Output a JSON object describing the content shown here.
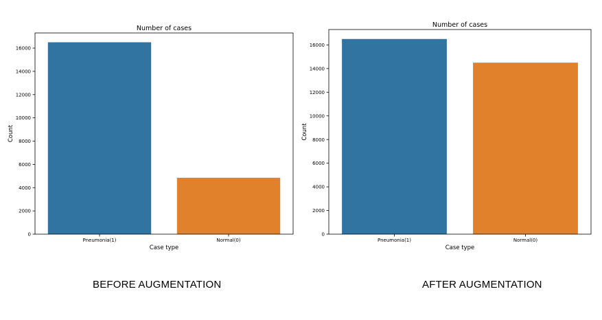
{
  "chart_data": [
    {
      "type": "bar",
      "title": "Number of cases",
      "xlabel": "Case type",
      "ylabel": "Count",
      "categories": [
        "Pneumonia(1)",
        "Normal(0)"
      ],
      "values": [
        16500,
        4850
      ],
      "colors": [
        "#3274a1",
        "#e1812c"
      ],
      "ylim": [
        0,
        17300
      ],
      "yticks": [
        0,
        2000,
        4000,
        6000,
        8000,
        10000,
        12000,
        14000,
        16000
      ],
      "grid": false,
      "caption": "BEFORE AUGMENTATION"
    },
    {
      "type": "bar",
      "title": "Number of cases",
      "xlabel": "Case type",
      "ylabel": "Count",
      "categories": [
        "Pneumonia(1)",
        "Normal(0)"
      ],
      "values": [
        16500,
        14500
      ],
      "colors": [
        "#3274a1",
        "#e1812c"
      ],
      "ylim": [
        0,
        17300
      ],
      "yticks": [
        0,
        2000,
        4000,
        6000,
        8000,
        10000,
        12000,
        14000,
        16000
      ],
      "grid": false,
      "caption": "AFTER AUGMENTATION"
    }
  ]
}
